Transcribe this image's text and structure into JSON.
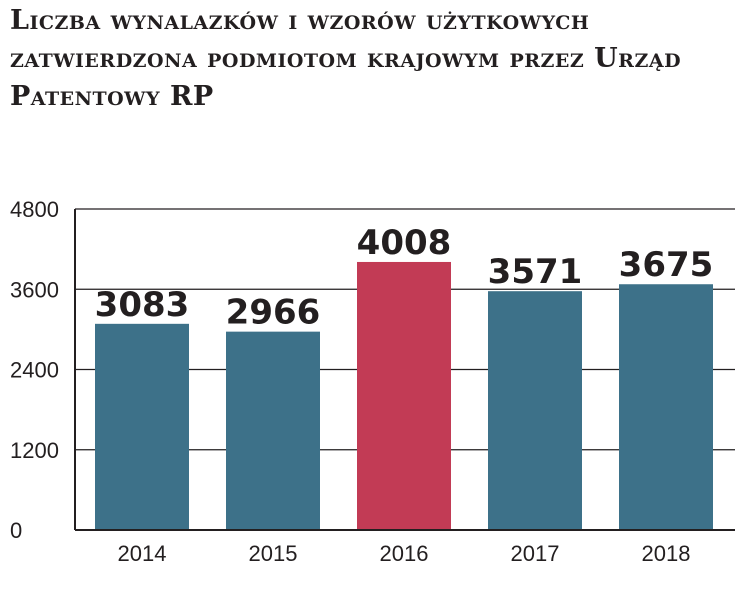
{
  "chart_data": {
    "type": "bar",
    "title": "Liczba wynalazków i wzorów użytkowych zatwierdzona podmiotom krajowym przez Urząd Patentowy RP",
    "categories": [
      "2014",
      "2015",
      "2016",
      "2017",
      "2018"
    ],
    "values": [
      3083,
      2966,
      4008,
      3571,
      3675
    ],
    "value_labels": [
      "3083",
      "2966",
      "4008",
      "3571",
      "3675"
    ],
    "highlight_index": 2,
    "ylim": [
      0,
      4800
    ],
    "yticks": [
      0,
      1200,
      2400,
      3600,
      4800
    ],
    "ytick_labels": [
      "0",
      "1200",
      "2400",
      "3600",
      "4800"
    ],
    "xlabel": "",
    "ylabel": "",
    "grid": true,
    "legend": "none",
    "colors": {
      "bar": "#3d7189",
      "highlight": "#c23b55",
      "grid": "#231f20",
      "text": "#231f20"
    }
  }
}
